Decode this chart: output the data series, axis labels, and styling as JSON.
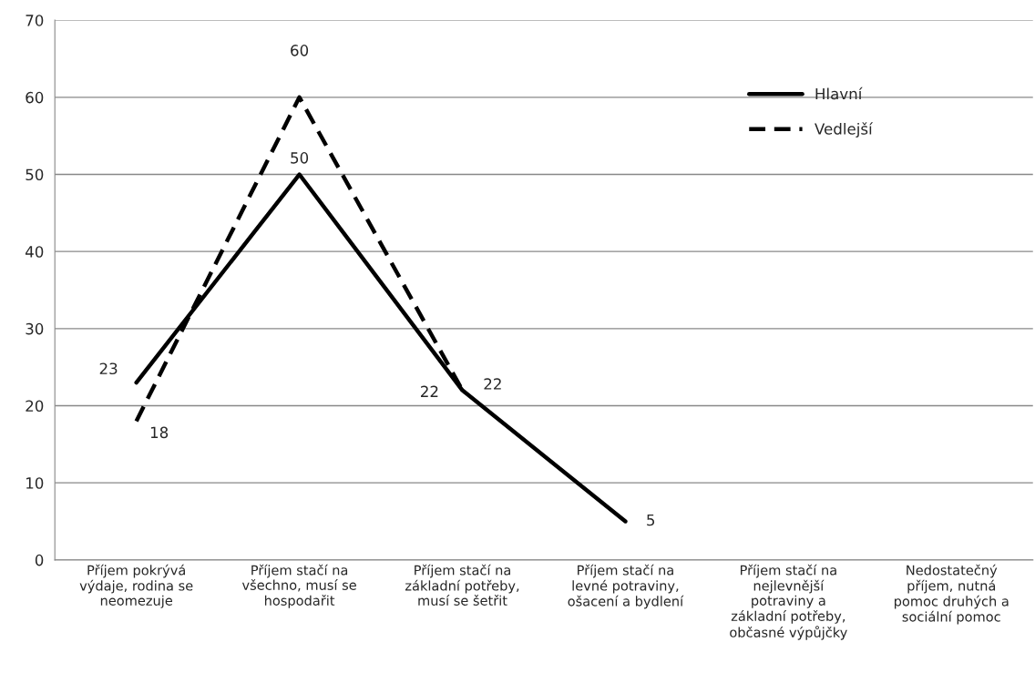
{
  "chart_data": {
    "type": "line",
    "categories": [
      "Příjem pokrývá\nvýdaje, rodina se\nneomezuje",
      "Příjem stačí na\nvšechno, musí se\nhospodařit",
      "Příjem stačí na\nzákladní potřeby,\nmusí se šetřit",
      "Příjem stačí na\nlevné potraviny,\nošacení a bydlení",
      "Příjem stačí na\nnejlevnější\npotraviny a\nzákladní potřeby,\nobčasné výpůjčky",
      "Nedostatečný\npříjem, nutná\npomoc druhých a\nsociální pomoc"
    ],
    "series": [
      {
        "name": "Hlavní",
        "color": "#000000",
        "line_style": "solid",
        "values": [
          23,
          50,
          22,
          5,
          null,
          null
        ]
      },
      {
        "name": "Vedlejší",
        "color": "#000000",
        "line_style": "dashed",
        "values": [
          18,
          60,
          22,
          null,
          null,
          null
        ]
      }
    ],
    "ylim": [
      0,
      70
    ],
    "yticks": [
      0,
      10,
      20,
      30,
      40,
      50,
      60,
      70
    ],
    "grid": "y",
    "legend": "top right",
    "data_labels": true,
    "marker": "none"
  }
}
